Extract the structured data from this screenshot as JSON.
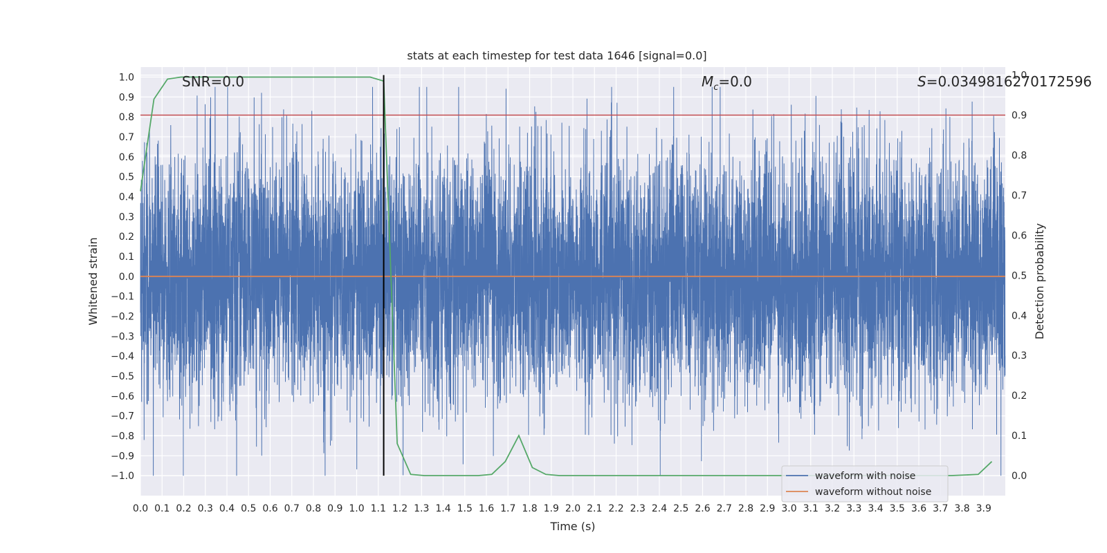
{
  "chart_data": {
    "type": "line",
    "title": "stats at each timestep for test data 1646 [signal=0.0]",
    "xlabel": "Time (s)",
    "ylabel": "Whitened strain",
    "y2label": "Detection probability",
    "xlim": [
      0.0,
      4.0
    ],
    "ylim": [
      -1.1,
      1.05
    ],
    "y2lim": [
      -0.05,
      1.02
    ],
    "xticks": [
      0.0,
      0.1,
      0.2,
      0.3,
      0.4,
      0.5,
      0.6,
      0.7,
      0.8,
      0.9,
      1.0,
      1.1,
      1.2,
      1.3,
      1.4,
      1.5,
      1.6,
      1.7,
      1.8,
      1.9,
      2.0,
      2.1,
      2.2,
      2.3,
      2.4,
      2.5,
      2.6,
      2.7,
      2.8,
      2.9,
      3.0,
      3.1,
      3.2,
      3.3,
      3.4,
      3.5,
      3.6,
      3.7,
      3.8,
      3.9
    ],
    "yticks": [
      1.0,
      0.9,
      0.8,
      0.7,
      0.6,
      0.5,
      0.4,
      0.3,
      0.2,
      0.1,
      0.0,
      -0.1,
      -0.2,
      -0.3,
      -0.4,
      -0.5,
      -0.6,
      -0.7,
      -0.8,
      -0.9,
      -1.0
    ],
    "y2ticks": [
      0.0,
      0.1,
      0.2,
      0.3,
      0.4,
      0.5,
      0.6,
      0.7,
      0.8,
      0.9,
      1.0
    ],
    "grid": true,
    "legend_position": "lower-right",
    "annotations": {
      "snr": "SNR=0.0",
      "mc_symbol": "M",
      "mc_sub": "c",
      "mc_value": "=0.0",
      "s_symbol": "S",
      "s_value": "=0.0349816270172596"
    },
    "series": [
      {
        "name": "waveform with noise",
        "color": "#4c72b0",
        "kind": "noise",
        "sample_rate": 2048,
        "approx_amplitude": 0.3
      },
      {
        "name": "waveform without noise",
        "color": "#dd8452",
        "x": [
          0.0,
          4.0
        ],
        "y": [
          0.0,
          0.0
        ]
      }
    ],
    "probability_series": {
      "color": "#55a868",
      "x": [
        0.0,
        0.0625,
        0.125,
        0.1875,
        0.25,
        0.5,
        0.75,
        1.0,
        1.0625,
        1.125,
        1.1875,
        1.25,
        1.3125,
        1.375,
        1.5,
        1.5625,
        1.625,
        1.6875,
        1.75,
        1.8125,
        1.875,
        1.9375,
        2.0,
        2.5,
        3.0,
        3.5,
        3.75,
        3.875,
        3.9375
      ],
      "y": [
        0.71,
        0.94,
        0.99,
        0.995,
        0.995,
        0.995,
        0.995,
        0.995,
        0.995,
        0.985,
        0.08,
        0.003,
        0.0,
        0.0,
        0.0,
        0.0,
        0.003,
        0.035,
        0.1,
        0.02,
        0.003,
        0.0,
        0.0,
        0.0,
        0.0,
        0.0,
        0.0,
        0.003,
        0.035
      ]
    },
    "threshold": {
      "color": "#c44e52",
      "y2": 0.9
    },
    "vertical_marker": {
      "color": "#000000",
      "x": 1.125
    }
  }
}
